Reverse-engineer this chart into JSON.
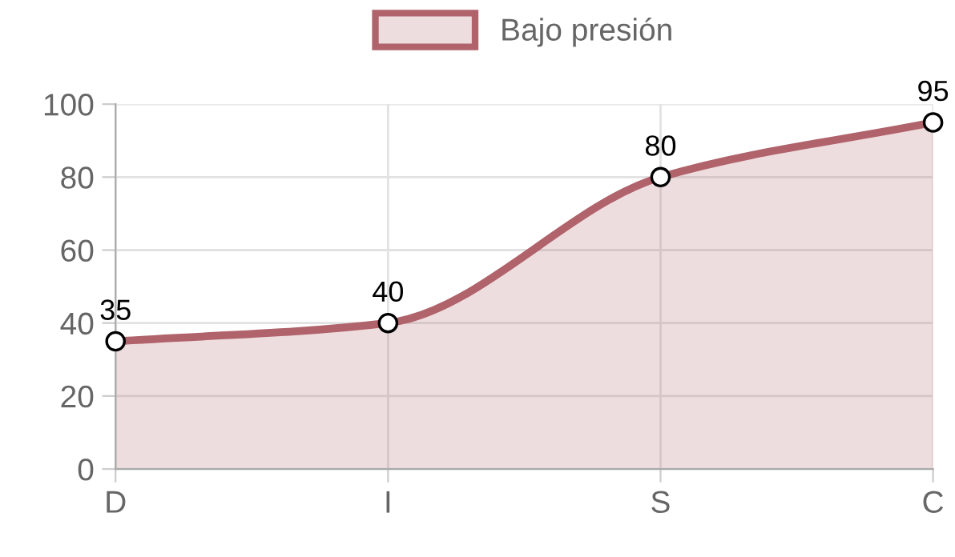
{
  "chart_data": {
    "type": "area",
    "categories": [
      "D",
      "I",
      "S",
      "C"
    ],
    "series": [
      {
        "name": "Bajo presión",
        "color": "#b0636b",
        "values": [
          35,
          40,
          80,
          95
        ]
      }
    ],
    "ylim": [
      0,
      100
    ],
    "yticks": [
      0,
      20,
      40,
      60,
      80,
      100
    ],
    "grid": true,
    "legend": "top",
    "marker": "circle",
    "data_labels": true
  }
}
